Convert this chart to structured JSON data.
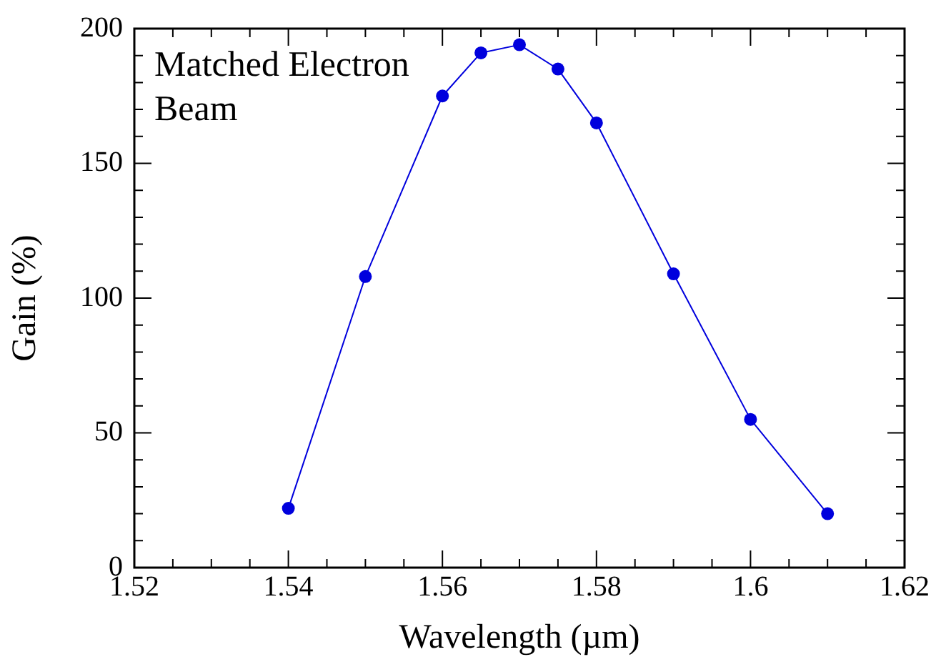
{
  "chart_data": {
    "type": "line",
    "xlabel": "Wavelength (µm)",
    "ylabel": "Gain (%)",
    "annotations": [
      "Matched Electron Beam"
    ],
    "x": [
      1.54,
      1.55,
      1.56,
      1.565,
      1.57,
      1.575,
      1.58,
      1.59,
      1.6,
      1.61
    ],
    "series": [
      {
        "color": "#0000dd",
        "values": [
          22,
          108,
          175,
          191,
          194,
          185,
          165,
          109,
          55,
          20
        ]
      }
    ],
    "marker": "circle",
    "line_style": "solid",
    "grid": false,
    "legend": false,
    "xlim": [
      1.52,
      1.62
    ],
    "xticks": [
      1.52,
      {
        "value": 1.525,
        "label": null
      },
      {
        "value": 1.53,
        "label": null
      },
      {
        "value": 1.535,
        "label": null
      },
      1.54,
      {
        "value": 1.545,
        "label": null
      },
      {
        "value": 1.55,
        "label": null
      },
      {
        "value": 1.555,
        "label": null
      },
      1.56,
      {
        "value": 1.565,
        "label": null
      },
      {
        "value": 1.57,
        "label": null
      },
      {
        "value": 1.575,
        "label": null
      },
      1.58,
      {
        "value": 1.585,
        "label": null
      },
      {
        "value": 1.59,
        "label": null
      },
      {
        "value": 1.595,
        "label": null
      },
      1.6,
      {
        "value": 1.605,
        "label": null
      },
      {
        "value": 1.61,
        "label": null
      },
      {
        "value": 1.615,
        "label": null
      },
      1.62
    ],
    "ylim": [
      0,
      200
    ],
    "yticks": [
      0,
      {
        "value": 10,
        "label": null
      },
      {
        "value": 20,
        "label": null
      },
      {
        "value": 30,
        "label": null
      },
      {
        "value": 40,
        "label": null
      },
      50,
      {
        "value": 60,
        "label": null
      },
      {
        "value": 70,
        "label": null
      },
      {
        "value": 80,
        "label": null
      },
      {
        "value": 90,
        "label": null
      },
      100,
      {
        "value": 110,
        "label": null
      },
      {
        "value": 120,
        "label": null
      },
      {
        "value": 130,
        "label": null
      },
      {
        "value": 140,
        "label": null
      },
      150,
      {
        "value": 160,
        "label": null
      },
      {
        "value": 170,
        "label": null
      },
      {
        "value": 180,
        "label": null
      },
      {
        "value": 190,
        "label": null
      },
      200
    ]
  }
}
